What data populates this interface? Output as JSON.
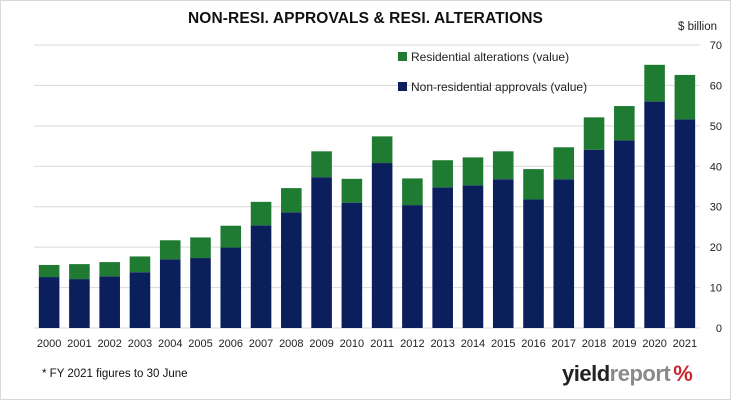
{
  "title": "NON-RESI. APPROVALS & RESI. ALTERATIONS",
  "unit_label": "$ billion",
  "footnote": "* FY 2021 figures to 30 June",
  "brand": {
    "part1": "yield",
    "part2": "report",
    "mark": "%"
  },
  "colors": {
    "non_residential": "#0b1f5c",
    "residential": "#1f7a32",
    "grid": "#d9d9d9"
  },
  "chart_data": {
    "type": "bar",
    "stacked": true,
    "title": "NON-RESI. APPROVALS & RESI. ALTERATIONS",
    "ylabel": "$ billion",
    "y_axis_side": "right",
    "ylim": [
      0,
      70
    ],
    "yticks": [
      0,
      10,
      20,
      30,
      40,
      50,
      60,
      70
    ],
    "grid": true,
    "legend_placement": "top-right",
    "categories": [
      "2000",
      "2001",
      "2002",
      "2003",
      "2004",
      "2005",
      "2006",
      "2007",
      "2008",
      "2009",
      "2010",
      "2011",
      "2012",
      "2013",
      "2014",
      "2015",
      "2016",
      "2017",
      "2018",
      "2019",
      "2020",
      "2021"
    ],
    "series": [
      {
        "name": "Non-residential approvals (value)",
        "color": "#0b1f5c",
        "values": [
          12.6,
          12.1,
          12.8,
          13.8,
          17.0,
          17.3,
          19.9,
          25.4,
          28.6,
          37.3,
          31.0,
          40.8,
          30.4,
          34.8,
          35.3,
          36.8,
          31.8,
          36.8,
          44.1,
          46.4,
          56.0,
          51.6
        ]
      },
      {
        "name": "Residential alterations (value)",
        "color": "#1f7a32",
        "values": [
          3.0,
          3.7,
          3.5,
          3.9,
          4.7,
          5.1,
          5.4,
          5.8,
          6.0,
          6.4,
          5.9,
          6.6,
          6.6,
          6.7,
          6.9,
          6.9,
          7.5,
          7.9,
          8.0,
          8.5,
          9.1,
          11.0
        ]
      }
    ]
  }
}
